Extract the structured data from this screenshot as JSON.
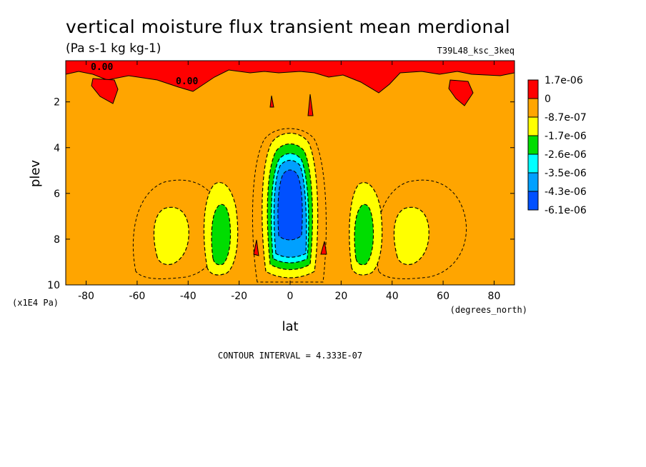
{
  "chart_data": {
    "type": "heatmap",
    "title": "vertical moisture flux transient mean merdional",
    "subtitle": "(Pa s-1 kg kg-1)",
    "run_label": "T39L48_ksc_3keq",
    "xlabel": "lat",
    "x_units": "(degrees_north)",
    "ylabel": "plev",
    "y_units": "(x1E4 Pa)",
    "xlim": [
      -88,
      88
    ],
    "ylim": [
      0.2,
      10
    ],
    "y_inverted": true,
    "x_ticks": [
      -80,
      -60,
      -40,
      -20,
      0,
      20,
      40,
      60,
      80
    ],
    "y_ticks": [
      2,
      4,
      6,
      8,
      10
    ],
    "contour_interval_text": "CONTOUR INTERVAL = 4.333E-07",
    "contour_labels": [
      "0.00",
      "0.00"
    ],
    "legend": [
      {
        "label": "1.7e-06",
        "color": "#ff0000"
      },
      {
        "label": "0",
        "color": "#ffa500"
      },
      {
        "label": "-8.7e-07",
        "color": "#ffff00"
      },
      {
        "label": "-1.7e-06",
        "color": "#00dd00"
      },
      {
        "label": "-2.6e-06",
        "color": "#00ffff"
      },
      {
        "label": "-3.5e-06",
        "color": "#00a0ff"
      },
      {
        "label": "-4.3e-06",
        "color": "#0050ff"
      },
      {
        "label": "-6.1e-06",
        "color": "#000000"
      }
    ],
    "background_color": "#ffa500",
    "minimum_region": {
      "lat_center": 0,
      "plev_range": [
        3,
        9.5
      ],
      "approx_min": -6.1e-06
    },
    "secondary_minima": [
      {
        "lat_center": -28,
        "plev_range": [
          6.5,
          9.3
        ],
        "approx_min": -2.6e-06
      },
      {
        "lat_center": 28,
        "plev_range": [
          6.5,
          9.3
        ],
        "approx_min": -2.6e-06
      },
      {
        "lat_center": -47,
        "plev_range": [
          7,
          8.8
        ],
        "approx_min": -8.7e-07
      },
      {
        "lat_center": 47,
        "plev_range": [
          7,
          8.8
        ],
        "approx_min": -8.7e-07
      }
    ]
  }
}
